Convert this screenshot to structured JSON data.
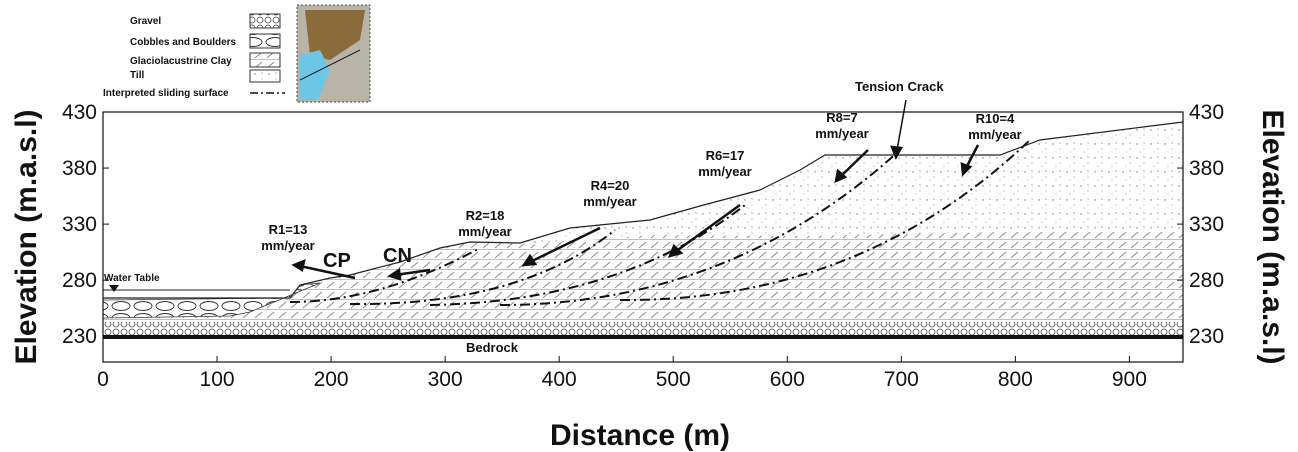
{
  "legend": {
    "items": [
      "Gravel",
      "Cobbles and Boulders",
      "Glaciolacustrine Clay",
      "Till",
      "Interpreted sliding surface"
    ]
  },
  "axes": {
    "x": {
      "label": "Distance (m)",
      "xlim": [
        0,
        947
      ],
      "ticks": [
        0,
        100,
        200,
        300,
        400,
        500,
        600,
        700,
        800,
        900
      ]
    },
    "y": {
      "label": "Elevation (m.a.s.l)",
      "ylim": [
        207,
        430
      ],
      "ticks": [
        230,
        280,
        330,
        380,
        430
      ]
    }
  },
  "annotations": {
    "water_table": "Water Table",
    "bedrock": "Bedrock",
    "tension_crack": "Tension Crack",
    "cp": "CP",
    "cn": "CN",
    "rates": [
      [
        "R1=13",
        "mm/year"
      ],
      [
        "R2=18",
        "mm/year"
      ],
      [
        "R4=20",
        "mm/year"
      ],
      [
        "R6=17",
        "mm/year"
      ],
      [
        "R8=7",
        "mm/year"
      ],
      [
        "R10=4",
        "mm/year"
      ]
    ]
  }
}
